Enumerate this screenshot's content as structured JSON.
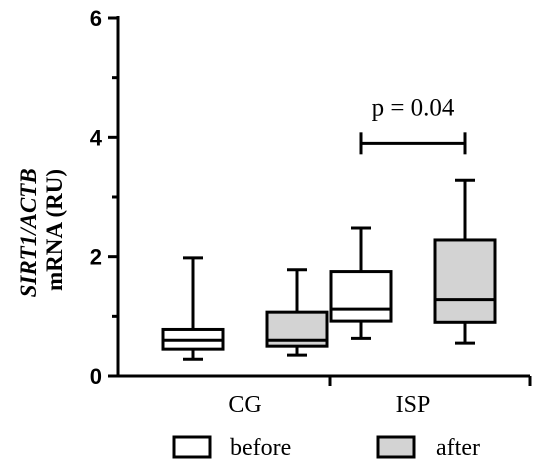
{
  "chart_data": {
    "type": "box",
    "ylabel_gene": "SIRT1/ACTB",
    "ylabel_unit": "mRNA (RU)",
    "xlabel": "",
    "ylim": [
      0,
      6
    ],
    "yticks": [
      "0",
      "2",
      "4",
      "6"
    ],
    "categories": [
      "CG",
      "ISP"
    ],
    "series": [
      {
        "name": "before",
        "fill": "#ffffff",
        "boxes": [
          {
            "min": 0.28,
            "q1": 0.45,
            "median": 0.6,
            "q3": 0.78,
            "max": 1.98
          },
          {
            "min": 0.63,
            "q1": 0.92,
            "median": 1.12,
            "q3": 1.75,
            "max": 2.48
          }
        ]
      },
      {
        "name": "after",
        "fill": "#d3d3d3",
        "boxes": [
          {
            "min": 0.35,
            "q1": 0.5,
            "median": 0.6,
            "q3": 1.07,
            "max": 1.78
          },
          {
            "min": 0.55,
            "q1": 0.9,
            "median": 1.28,
            "q3": 2.28,
            "max": 3.28
          }
        ]
      }
    ],
    "annotations": [
      {
        "text": "p = 0.04",
        "category": "ISP",
        "y": 4.0
      }
    ],
    "legend_position": "bottom"
  },
  "colors": {
    "before_fill": "#ffffff",
    "after_fill": "#d3d3d3",
    "stroke": "#000000"
  }
}
